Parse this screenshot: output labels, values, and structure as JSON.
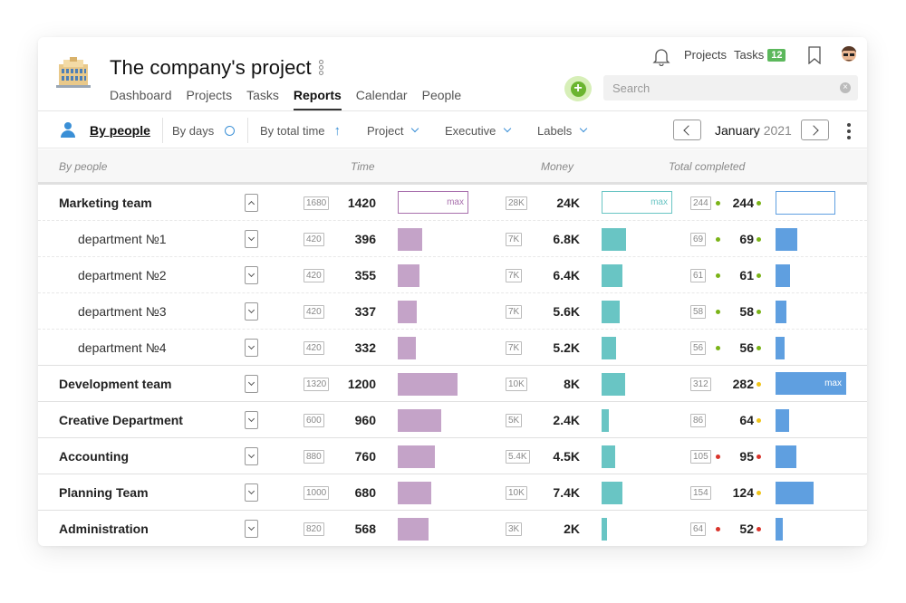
{
  "header": {
    "title": "The company's project",
    "nav": [
      {
        "label": "Dashboard",
        "active": false
      },
      {
        "label": "Projects",
        "active": false
      },
      {
        "label": "Tasks",
        "active": false
      },
      {
        "label": "Reports",
        "active": true
      },
      {
        "label": "Calendar",
        "active": false
      },
      {
        "label": "People",
        "active": false
      }
    ],
    "top_links": {
      "projects": "Projects",
      "tasks": "Tasks",
      "tasks_badge": "12"
    },
    "search_placeholder": "Search"
  },
  "filters": {
    "by_people": "By people",
    "by_days": "By days",
    "by_total_time": "By total time",
    "project": "Project",
    "executive": "Executive",
    "labels": "Labels",
    "month": "January",
    "year": "2021"
  },
  "table": {
    "columns": {
      "by_people": "By people",
      "time": "Time",
      "money": "Money",
      "total_completed": "Total completed"
    },
    "max_label": "max",
    "rows": [
      {
        "name": "Marketing team",
        "kind": "group",
        "expanded": true,
        "time_box": "1680",
        "time": "1420",
        "time_frac": 1.0,
        "money_box": "28K",
        "money": "24K",
        "money_frac": 1.0,
        "done_box": "244",
        "done": "244",
        "done_frac": 0.86,
        "dot": "#7ab317",
        "dot_before": true
      },
      {
        "name": "department №1",
        "kind": "sub",
        "time_box": "420",
        "time": "396",
        "time_frac": 0.35,
        "money_box": "7K",
        "money": "6.8K",
        "money_frac": 0.34,
        "done_box": "69",
        "done": "69",
        "done_frac": 0.31,
        "dot": "#7ab317",
        "dot_before": true
      },
      {
        "name": "department №2",
        "kind": "sub",
        "time_box": "420",
        "time": "355",
        "time_frac": 0.31,
        "money_box": "7K",
        "money": "6.4K",
        "money_frac": 0.3,
        "done_box": "61",
        "done": "61",
        "done_frac": 0.2,
        "dot": "#7ab317",
        "dot_before": true
      },
      {
        "name": "department №3",
        "kind": "sub",
        "time_box": "420",
        "time": "337",
        "time_frac": 0.27,
        "money_box": "7K",
        "money": "5.6K",
        "money_frac": 0.25,
        "done_box": "58",
        "done": "58",
        "done_frac": 0.16,
        "dot": "#7ab317",
        "dot_before": true
      },
      {
        "name": "department №4",
        "kind": "sub",
        "time_box": "420",
        "time": "332",
        "time_frac": 0.26,
        "money_box": "7K",
        "money": "5.2K",
        "money_frac": 0.21,
        "done_box": "56",
        "done": "56",
        "done_frac": 0.13,
        "dot": "#7ab317",
        "dot_before": true
      },
      {
        "name": "Development team",
        "kind": "group",
        "expanded": false,
        "time_box": "1320",
        "time": "1200",
        "time_frac": 0.85,
        "money_box": "10K",
        "money": "8K",
        "money_frac": 0.33,
        "done_box": "312",
        "done": "282",
        "done_frac": 1.0,
        "dot": "#f0c419",
        "dot_before": false,
        "done_max": true
      },
      {
        "name": "Creative Department",
        "kind": "group",
        "expanded": false,
        "time_box": "600",
        "time": "960",
        "time_frac": 0.62,
        "money_box": "5K",
        "money": "2.4K",
        "money_frac": 0.1,
        "done_box": "86",
        "done": "64",
        "done_frac": 0.19,
        "dot": "#f0c419",
        "dot_before": false
      },
      {
        "name": "Accounting",
        "kind": "group",
        "expanded": false,
        "time_box": "880",
        "time": "760",
        "time_frac": 0.53,
        "money_box": "5.4K",
        "money": "4.5K",
        "money_frac": 0.19,
        "done_box": "105",
        "done": "95",
        "done_frac": 0.3,
        "dot": "#d9342b",
        "dot_before": true
      },
      {
        "name": "Planning Team",
        "kind": "group",
        "expanded": false,
        "time_box": "1000",
        "time": "680",
        "time_frac": 0.48,
        "money_box": "10K",
        "money": "7.4K",
        "money_frac": 0.3,
        "done_box": "154",
        "done": "124",
        "done_frac": 0.54,
        "dot": "#f0c419",
        "dot_before": false
      },
      {
        "name": "Administration",
        "kind": "group",
        "expanded": false,
        "time_box": "820",
        "time": "568",
        "time_frac": 0.43,
        "money_box": "3K",
        "money": "2K",
        "money_frac": 0.08,
        "done_box": "64",
        "done": "52",
        "done_frac": 0.1,
        "dot": "#d9342b",
        "dot_before": true
      }
    ]
  },
  "colors": {
    "time_bar": "#c4a3c8",
    "money_bar": "#69c5c4",
    "done_bar": "#5f9fe0",
    "time_max_border": "#a870ad",
    "money_max_border": "#69c5c4",
    "done_max_border": "#5f9fe0"
  }
}
